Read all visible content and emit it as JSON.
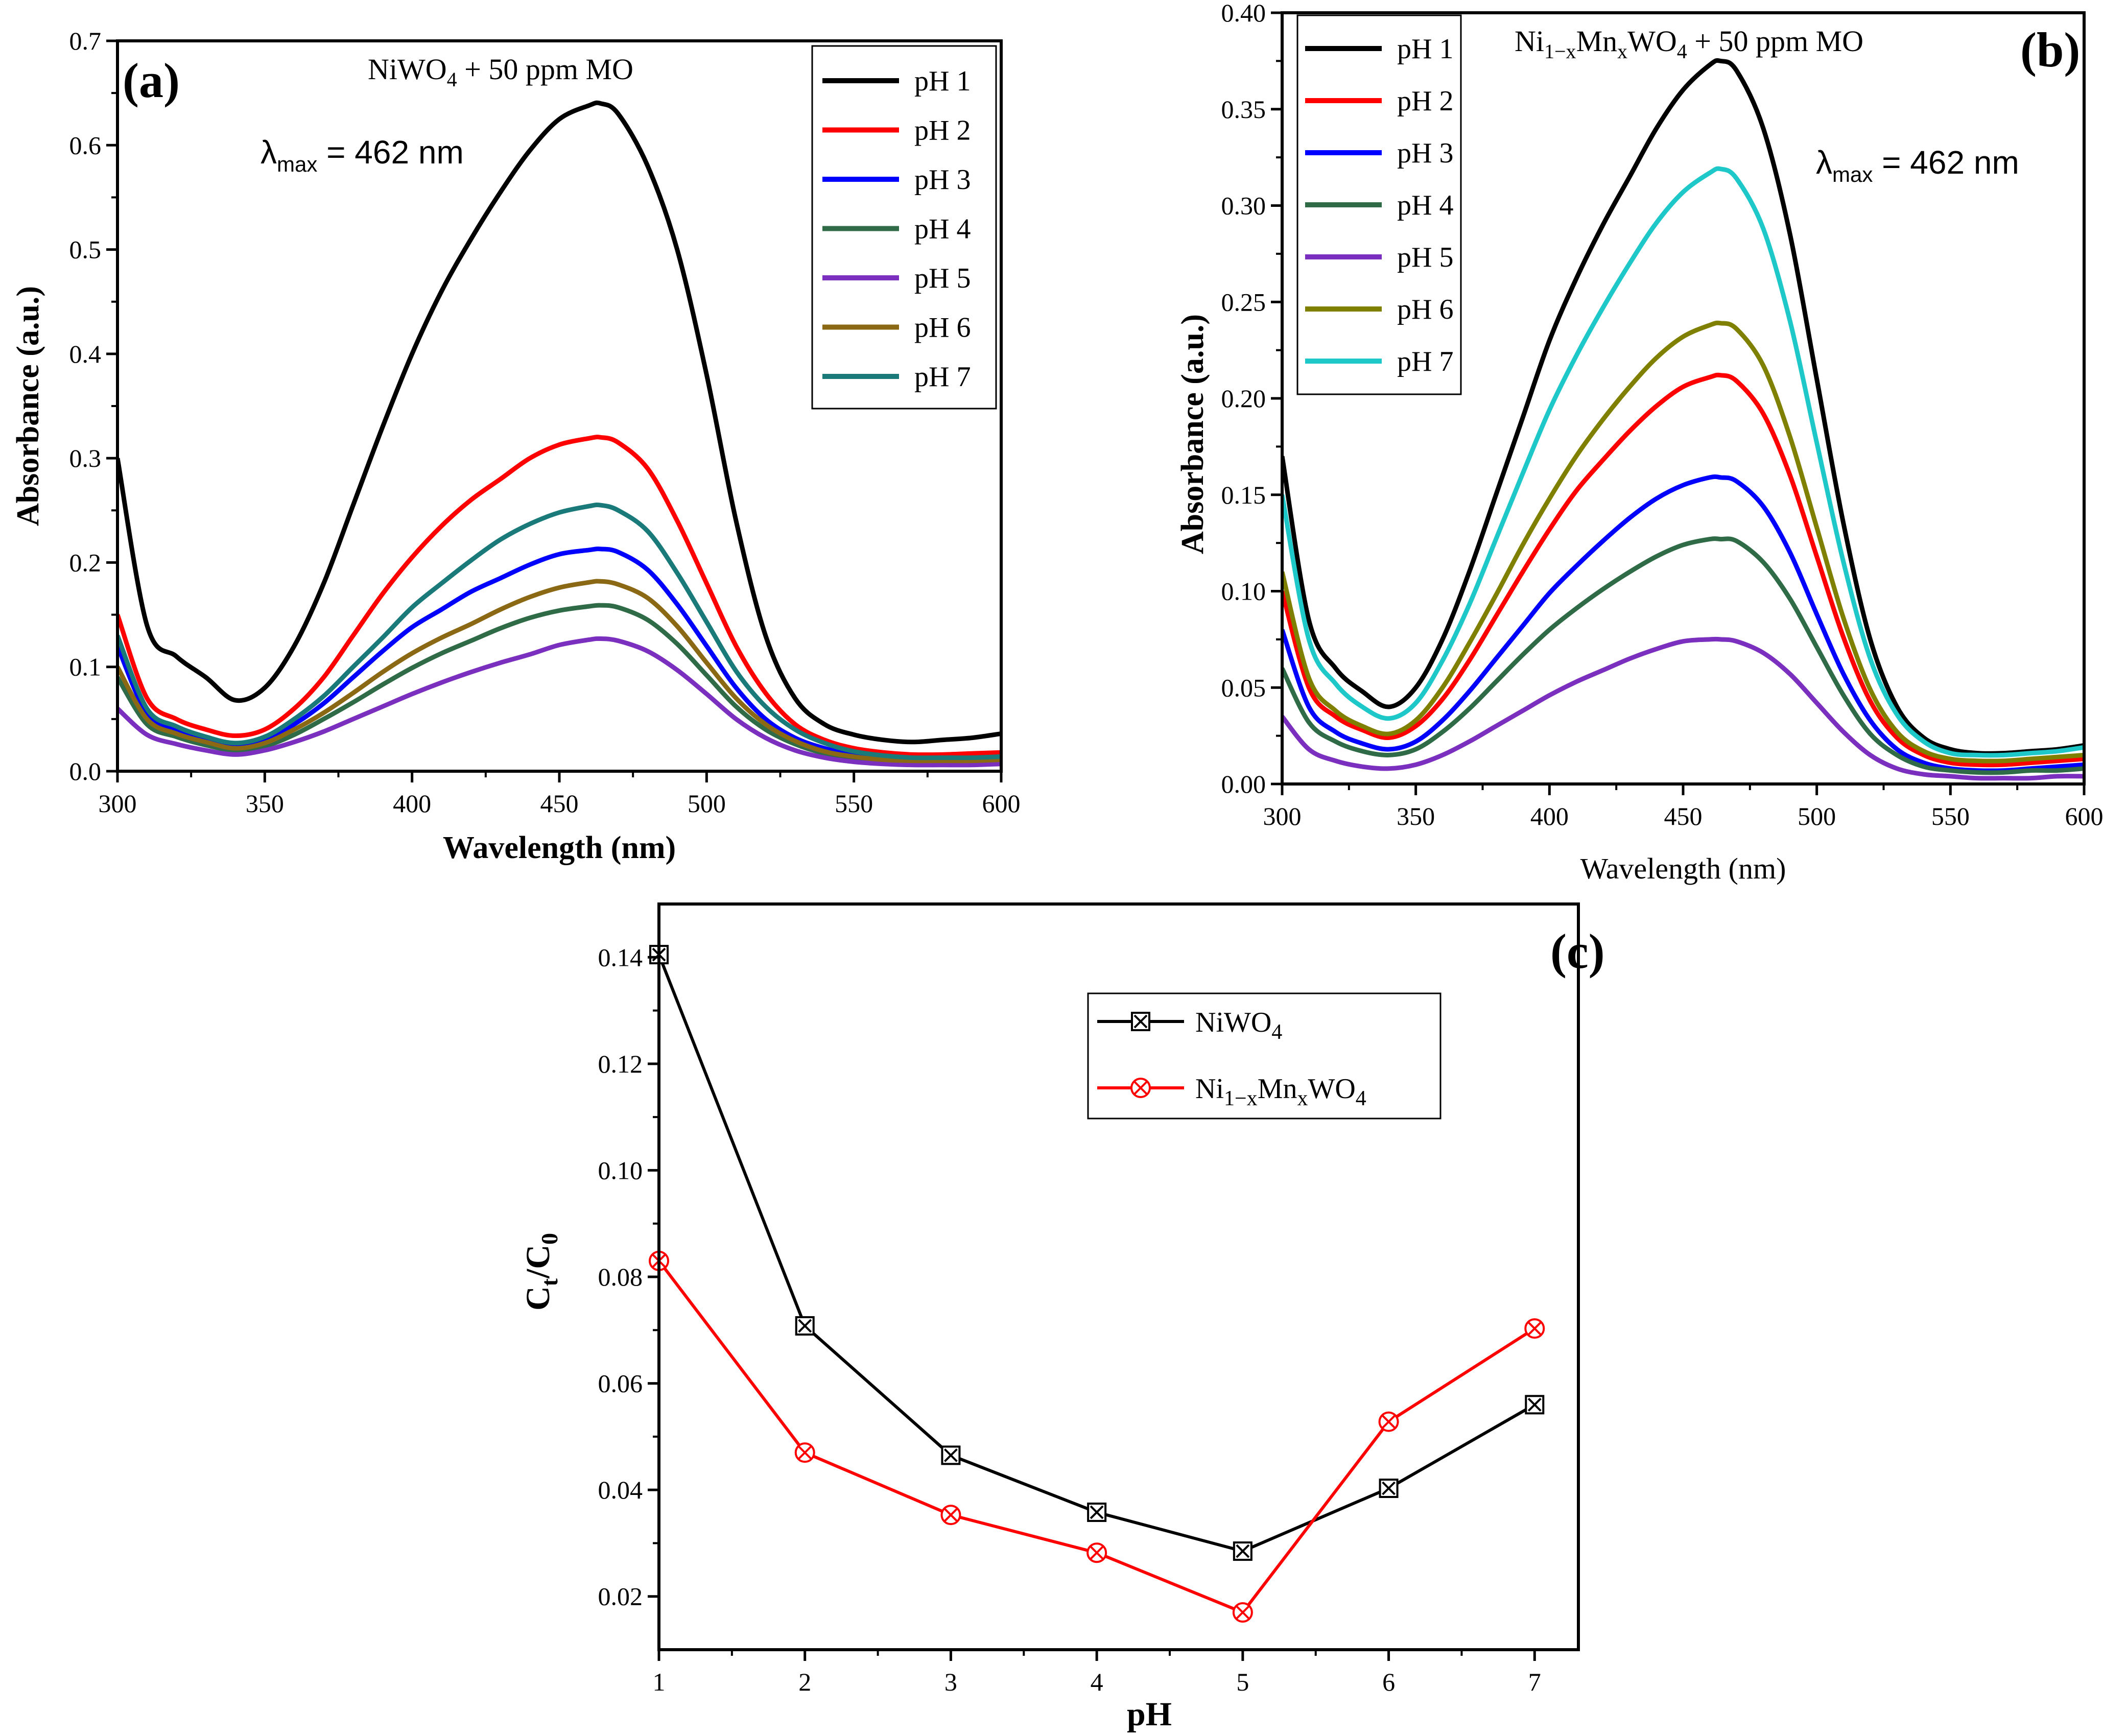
{
  "chart_data": [
    {
      "id": "a",
      "type": "line",
      "panel_label": "(a)",
      "title": "NiWO4 + 50 ppm MO",
      "annotation": "λmax = 462 nm",
      "xlabel": "Wavelength (nm)",
      "ylabel": "Absorbance (a.u.)",
      "xlim": [
        300,
        600
      ],
      "ylim": [
        0,
        0.7
      ],
      "xticks": [
        300,
        350,
        400,
        450,
        500,
        550,
        600
      ],
      "yticks": [
        0.0,
        0.1,
        0.2,
        0.3,
        0.4,
        0.5,
        0.6,
        0.7
      ],
      "ytick_labels": [
        "0.0",
        "0.1",
        "0.2",
        "0.3",
        "0.4",
        "0.5",
        "0.6",
        "0.7"
      ],
      "legend_position": "top-right",
      "x": [
        300,
        310,
        320,
        330,
        340,
        350,
        360,
        370,
        380,
        390,
        400,
        410,
        420,
        430,
        440,
        450,
        460,
        464,
        470,
        480,
        490,
        500,
        510,
        520,
        530,
        540,
        550,
        560,
        570,
        580,
        590,
        600
      ],
      "series": [
        {
          "name": "pH 1",
          "color": "#000000",
          "values": [
            0.3,
            0.14,
            0.11,
            0.09,
            0.068,
            0.08,
            0.12,
            0.18,
            0.255,
            0.33,
            0.4,
            0.46,
            0.51,
            0.555,
            0.595,
            0.625,
            0.638,
            0.64,
            0.63,
            0.58,
            0.5,
            0.38,
            0.24,
            0.13,
            0.07,
            0.045,
            0.035,
            0.03,
            0.028,
            0.03,
            0.032,
            0.036
          ]
        },
        {
          "name": "pH 2",
          "color": "#ff0000",
          "values": [
            0.15,
            0.07,
            0.05,
            0.04,
            0.034,
            0.04,
            0.06,
            0.09,
            0.13,
            0.17,
            0.205,
            0.235,
            0.26,
            0.28,
            0.3,
            0.313,
            0.319,
            0.32,
            0.315,
            0.29,
            0.24,
            0.18,
            0.12,
            0.075,
            0.045,
            0.03,
            0.022,
            0.018,
            0.016,
            0.016,
            0.017,
            0.018
          ]
        },
        {
          "name": "pH 3",
          "color": "#0000ff",
          "values": [
            0.12,
            0.055,
            0.04,
            0.03,
            0.026,
            0.03,
            0.045,
            0.065,
            0.09,
            0.115,
            0.138,
            0.155,
            0.172,
            0.185,
            0.198,
            0.208,
            0.212,
            0.213,
            0.21,
            0.193,
            0.16,
            0.12,
            0.08,
            0.05,
            0.032,
            0.022,
            0.016,
            0.013,
            0.012,
            0.012,
            0.012,
            0.013
          ]
        },
        {
          "name": "pH 4",
          "color": "#2e6b46",
          "values": [
            0.09,
            0.045,
            0.033,
            0.025,
            0.02,
            0.024,
            0.035,
            0.05,
            0.066,
            0.083,
            0.099,
            0.113,
            0.125,
            0.137,
            0.147,
            0.154,
            0.158,
            0.159,
            0.157,
            0.145,
            0.122,
            0.092,
            0.062,
            0.04,
            0.026,
            0.017,
            0.012,
            0.01,
            0.009,
            0.009,
            0.009,
            0.01
          ]
        },
        {
          "name": "pH 5",
          "color": "#7b2fbe",
          "values": [
            0.06,
            0.035,
            0.026,
            0.02,
            0.016,
            0.02,
            0.028,
            0.038,
            0.05,
            0.062,
            0.074,
            0.085,
            0.095,
            0.104,
            0.112,
            0.121,
            0.126,
            0.127,
            0.125,
            0.115,
            0.097,
            0.074,
            0.05,
            0.032,
            0.02,
            0.013,
            0.009,
            0.007,
            0.006,
            0.006,
            0.006,
            0.007
          ]
        },
        {
          "name": "pH 6",
          "color": "#8b6914",
          "values": [
            0.1,
            0.05,
            0.036,
            0.028,
            0.022,
            0.027,
            0.04,
            0.056,
            0.075,
            0.095,
            0.113,
            0.128,
            0.141,
            0.155,
            0.167,
            0.176,
            0.181,
            0.182,
            0.179,
            0.166,
            0.139,
            0.104,
            0.07,
            0.045,
            0.029,
            0.019,
            0.014,
            0.011,
            0.01,
            0.01,
            0.01,
            0.011
          ]
        },
        {
          "name": "pH 7",
          "color": "#1a7a7a",
          "values": [
            0.13,
            0.06,
            0.043,
            0.033,
            0.027,
            0.033,
            0.05,
            0.072,
            0.1,
            0.128,
            0.157,
            0.18,
            0.202,
            0.222,
            0.237,
            0.248,
            0.254,
            0.255,
            0.25,
            0.23,
            0.19,
            0.143,
            0.096,
            0.062,
            0.04,
            0.027,
            0.019,
            0.015,
            0.013,
            0.013,
            0.013,
            0.014
          ]
        }
      ]
    },
    {
      "id": "b",
      "type": "line",
      "panel_label": "(b)",
      "title": "Ni1−xMnxWO4 + 50 ppm MO",
      "annotation": "λmax = 462 nm",
      "xlabel": "Wavelength (nm)",
      "ylabel": "Absorbance (a.u.)",
      "xlim": [
        300,
        600
      ],
      "ylim": [
        0,
        0.4
      ],
      "xticks": [
        300,
        350,
        400,
        450,
        500,
        550,
        600
      ],
      "yticks": [
        0.0,
        0.05,
        0.1,
        0.15,
        0.2,
        0.25,
        0.3,
        0.35,
        0.4
      ],
      "ytick_labels": [
        "0.00",
        "0.05",
        "0.10",
        "0.15",
        "0.20",
        "0.25",
        "0.30",
        "0.35",
        "0.40"
      ],
      "legend_position": "top-left",
      "x": [
        300,
        310,
        320,
        330,
        340,
        350,
        360,
        370,
        380,
        390,
        400,
        410,
        420,
        430,
        440,
        450,
        460,
        464,
        470,
        480,
        490,
        500,
        510,
        520,
        530,
        540,
        550,
        560,
        570,
        580,
        590,
        600
      ],
      "series": [
        {
          "name": "pH 1",
          "color": "#000000",
          "values": [
            0.17,
            0.085,
            0.06,
            0.048,
            0.04,
            0.05,
            0.075,
            0.11,
            0.15,
            0.19,
            0.23,
            0.262,
            0.29,
            0.315,
            0.34,
            0.36,
            0.373,
            0.375,
            0.37,
            0.34,
            0.285,
            0.21,
            0.135,
            0.075,
            0.04,
            0.024,
            0.018,
            0.016,
            0.016,
            0.017,
            0.018,
            0.02
          ]
        },
        {
          "name": "pH 2",
          "color": "#ff0000",
          "values": [
            0.1,
            0.05,
            0.035,
            0.028,
            0.024,
            0.03,
            0.044,
            0.064,
            0.087,
            0.11,
            0.132,
            0.152,
            0.168,
            0.183,
            0.196,
            0.206,
            0.211,
            0.212,
            0.209,
            0.192,
            0.16,
            0.118,
            0.076,
            0.043,
            0.024,
            0.015,
            0.011,
            0.01,
            0.01,
            0.011,
            0.012,
            0.013
          ]
        },
        {
          "name": "pH 3",
          "color": "#0000ff",
          "values": [
            0.08,
            0.04,
            0.027,
            0.021,
            0.018,
            0.022,
            0.033,
            0.048,
            0.065,
            0.082,
            0.099,
            0.113,
            0.126,
            0.138,
            0.148,
            0.155,
            0.159,
            0.159,
            0.157,
            0.144,
            0.12,
            0.088,
            0.057,
            0.033,
            0.018,
            0.011,
            0.008,
            0.007,
            0.007,
            0.008,
            0.009,
            0.01
          ]
        },
        {
          "name": "pH 4",
          "color": "#2e6b46",
          "values": [
            0.06,
            0.032,
            0.022,
            0.017,
            0.015,
            0.018,
            0.027,
            0.039,
            0.053,
            0.067,
            0.08,
            0.091,
            0.101,
            0.11,
            0.118,
            0.124,
            0.127,
            0.127,
            0.126,
            0.115,
            0.096,
            0.071,
            0.046,
            0.026,
            0.015,
            0.009,
            0.007,
            0.006,
            0.006,
            0.007,
            0.007,
            0.008
          ]
        },
        {
          "name": "pH 5",
          "color": "#7b2fbe",
          "values": [
            0.035,
            0.018,
            0.012,
            0.009,
            0.008,
            0.01,
            0.015,
            0.022,
            0.03,
            0.038,
            0.046,
            0.053,
            0.059,
            0.065,
            0.07,
            0.074,
            0.075,
            0.075,
            0.074,
            0.068,
            0.057,
            0.042,
            0.027,
            0.015,
            0.008,
            0.005,
            0.004,
            0.003,
            0.003,
            0.003,
            0.004,
            0.004
          ]
        },
        {
          "name": "pH 6",
          "color": "#808000",
          "values": [
            0.11,
            0.055,
            0.038,
            0.03,
            0.026,
            0.033,
            0.05,
            0.073,
            0.098,
            0.124,
            0.148,
            0.17,
            0.189,
            0.206,
            0.221,
            0.232,
            0.238,
            0.239,
            0.236,
            0.217,
            0.18,
            0.133,
            0.086,
            0.049,
            0.027,
            0.017,
            0.013,
            0.012,
            0.012,
            0.013,
            0.014,
            0.015
          ]
        },
        {
          "name": "pH 7",
          "color": "#1fc8c8",
          "values": [
            0.15,
            0.075,
            0.052,
            0.04,
            0.034,
            0.042,
            0.064,
            0.093,
            0.127,
            0.161,
            0.194,
            0.222,
            0.247,
            0.27,
            0.291,
            0.307,
            0.317,
            0.319,
            0.314,
            0.288,
            0.24,
            0.177,
            0.115,
            0.065,
            0.036,
            0.022,
            0.016,
            0.015,
            0.015,
            0.016,
            0.017,
            0.019
          ]
        }
      ]
    },
    {
      "id": "c",
      "type": "line",
      "panel_label": "(c)",
      "xlabel": "pH",
      "ylabel": "Ct/C0",
      "xlim": [
        1,
        7.3
      ],
      "ylim": [
        0.01,
        0.15
      ],
      "xticks": [
        1,
        2,
        3,
        4,
        5,
        6,
        7
      ],
      "yticks": [
        0.02,
        0.04,
        0.06,
        0.08,
        0.1,
        0.12,
        0.14
      ],
      "ytick_labels": [
        "0.02",
        "0.04",
        "0.06",
        "0.08",
        "0.10",
        "0.12",
        "0.14"
      ],
      "legend_position": "top-center",
      "x": [
        1,
        2,
        3,
        4,
        5,
        6,
        7
      ],
      "series": [
        {
          "name": "NiWO4",
          "color": "#000000",
          "marker": "crossed-square",
          "values": [
            0.1405,
            0.0708,
            0.0465,
            0.0358,
            0.0285,
            0.0403,
            0.056
          ]
        },
        {
          "name": "Ni1−xMnxWO4",
          "color": "#ff0000",
          "marker": "crossed-circle",
          "values": [
            0.083,
            0.047,
            0.0353,
            0.0282,
            0.017,
            0.0528,
            0.0703
          ]
        }
      ]
    }
  ]
}
